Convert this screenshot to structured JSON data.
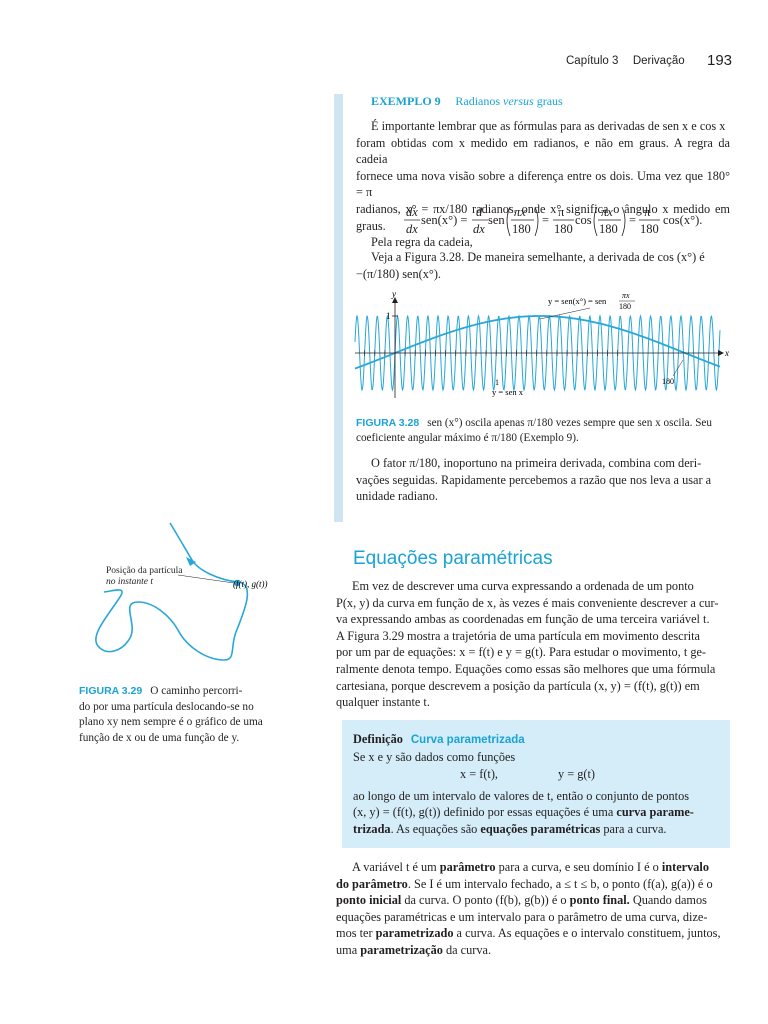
{
  "header": {
    "chapter": "Capítulo 3",
    "section": "Derivação",
    "page_number": "193"
  },
  "example9": {
    "label": "EXEMPLO 9",
    "title_pre": "Radianos ",
    "title_it": "versus",
    "title_post": " graus",
    "p1_line1": "É importante lembrar que as fórmulas para as derivadas de sen x e cos x",
    "p1_line2": "foram obtidas com x medido em radianos, e não em graus. A regra da cadeia",
    "p1_line3": "fornece uma nova visão sobre a diferença entre os dois. Uma vez que 180° = π",
    "p1_line4": "radianos, x° = πx/180 radianos, onde x° significa o ângulo x medido em graus.",
    "p2": "Pela regra da cadeia,",
    "eq_d": "d",
    "eq_dx": "dx",
    "eq_sen": "sen",
    "eq_cos": "cos",
    "eq_sen_xdeg": "sen(x°) =",
    "eq_pix": "πx",
    "eq_180": "180",
    "eq_pi": "π",
    "eq_equals": "=",
    "eq_cos_xdeg": "cos(x°).",
    "p3_line1": "Veja a Figura 3.28. De maneira semelhante, a derivada de cos (x°) é",
    "p3_line2": "−(π/180) sen(x°).",
    "p4_line1": "O fator π/180, inoportuno na primeira derivada, combina com deri-",
    "p4_line2": "vações seguidas. Rapidamente percebemos a razão que nos leva a usar a",
    "p4_line3": "unidade radiano."
  },
  "figure328": {
    "label": "FIGURA 3.28",
    "caption_line1": "sen (x°) oscila apenas π/180 vezes sempre que sen x oscila. Seu",
    "caption_line2": "coeficiente angular máximo é π/180 (Exemplo 9).",
    "curve_label_1": "y = sen(x°) = sen",
    "curve_label_frac_num": "πx",
    "curve_label_frac_den": "180",
    "curve_label_2": "y = sen x",
    "axis_x": "x",
    "axis_y": "y",
    "tick_1_y": "1",
    "tick_1_x": "1",
    "tick_180": "180",
    "colors": {
      "curve": "#29a7d8",
      "axis": "#231f20"
    }
  },
  "figure329": {
    "label": "FIGURA 3.29",
    "caption_line1": "O caminho percorri-",
    "caption_line2": "do por uma partícula deslocando-se no",
    "caption_line3": "plano xy nem sempre é o gráfico de uma",
    "caption_line4": "função de x ou de uma função de y.",
    "point_label_line1": "Posição da partícula",
    "point_label_line2": "no instante t",
    "coord_label": "(f(t), g(t))"
  },
  "section": {
    "title": "Equações paramétricas",
    "p1_line1": "Em vez de descrever uma curva expressando a ordenada de um ponto",
    "p1_line2": "P(x, y) da curva em função de x, às vezes é mais conveniente descrever a cur-",
    "p1_line3": "va expressando ambas as coordenadas em função de uma terceira variável t.",
    "p1_line4": "A Figura 3.29 mostra a trajetória de uma partícula em movimento descrita",
    "p1_line5": "por um par de equações: x = f(t) e y = g(t). Para estudar o movimento, t ge-",
    "p1_line6": "ralmente denota tempo. Equações como essas são melhores que uma fórmula",
    "p1_line7": "cartesiana, porque descrevem a posição da partícula (x, y) = (f(t), g(t)) em",
    "p1_line8": "qualquer instante t."
  },
  "definition": {
    "label": "Definição",
    "title": "Curva parametrizada",
    "line1": "Se x e y são dados como funções",
    "eq_left": "x = f(t),",
    "eq_right": "y = g(t)",
    "line2": "ao longo de um intervalo de valores de t, então o conjunto de pontos",
    "line3_a": "(x, y) = (f(t), g(t)) definido por essas equações é uma ",
    "line3_b": "curva parame-",
    "line4_a": "trizada",
    "line4_b": ". As equações são ",
    "line4_c": "equações paramétricas",
    "line4_d": " para a curva."
  },
  "closing": {
    "l1_a": "A variável t é um ",
    "l1_b": "parâmetro",
    "l1_c": " para a curva, e seu domínio I é o ",
    "l1_d": "intervalo",
    "l2_a": "do parâmetro",
    "l2_b": ". Se I é um intervalo fechado, a ≤ t ≤ b, o ponto (f(a), g(a)) é o",
    "l3_a": "ponto inicial",
    "l3_b": " da curva. O ponto (f(b), g(b)) é o ",
    "l3_c": "ponto final.",
    "l3_d": " Quando damos",
    "l4": "equações paramétricas e um intervalo para o parâmetro de uma curva, dize-",
    "l5_a": "mos ter ",
    "l5_b": "parametrizado",
    "l5_c": " a curva. As equações e o intervalo constituem, juntos,",
    "l6_a": "uma ",
    "l6_b": "parametrização",
    "l6_c": " da curva."
  }
}
